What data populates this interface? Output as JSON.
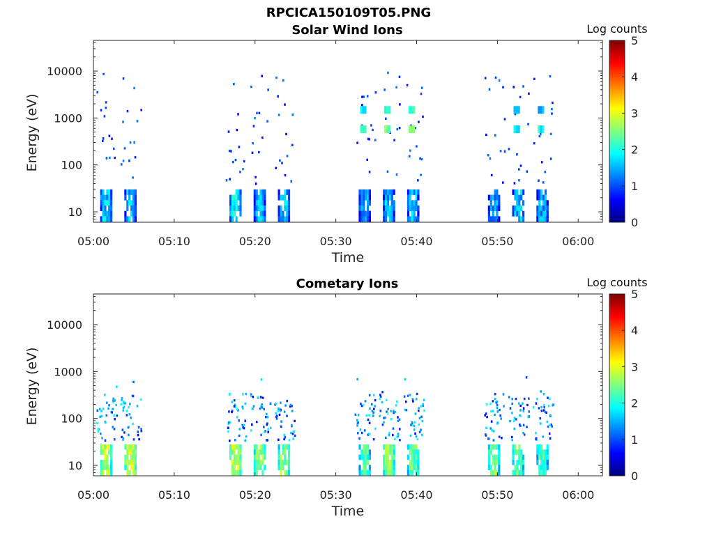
{
  "figure": {
    "title": "RPCICA150109T05.PNG"
  },
  "chart_data": [
    {
      "type": "heatmap",
      "title": "Solar Wind Ions",
      "xlabel": "Time",
      "ylabel": "Energy (eV)",
      "y_scale": "log",
      "ylim": [
        6,
        45000
      ],
      "xlim": [
        "05:00",
        "06:03"
      ],
      "x_ticks": [
        "05:00",
        "05:10",
        "05:20",
        "05:30",
        "05:40",
        "05:50",
        "06:00"
      ],
      "y_ticks": [
        "10",
        "100",
        "1000",
        "10000"
      ],
      "y_tick_values": [
        10,
        100,
        1000,
        10000
      ],
      "colorbar": {
        "label": "Log counts",
        "range": [
          0,
          5
        ],
        "ticks": [
          "0",
          "1",
          "2",
          "3",
          "4",
          "5"
        ]
      },
      "bursts": [
        {
          "start": "05:01",
          "end": "05:02",
          "low_energy_counts": 1.6
        },
        {
          "start": "05:04",
          "end": "05:05",
          "low_energy_counts": 1.5
        },
        {
          "start": "05:17",
          "end": "05:18",
          "low_energy_counts": 1.8
        },
        {
          "start": "05:20",
          "end": "05:21",
          "low_energy_counts": 1.5
        },
        {
          "start": "05:23",
          "end": "05:24",
          "low_energy_counts": 1.5
        },
        {
          "start": "05:33",
          "end": "05:34",
          "low_energy_counts": 1.4,
          "mid_energy_counts": 2.3
        },
        {
          "start": "05:36",
          "end": "05:37",
          "low_energy_counts": 1.5,
          "mid_energy_counts": 2.5
        },
        {
          "start": "05:39",
          "end": "05:40",
          "low_energy_counts": 1.5,
          "mid_energy_counts": 2.4
        },
        {
          "start": "05:49",
          "end": "05:50",
          "low_energy_counts": 1.3
        },
        {
          "start": "05:52",
          "end": "05:53",
          "low_energy_counts": 1.5,
          "mid_energy_counts": 1.9
        },
        {
          "start": "05:55",
          "end": "05:56",
          "low_energy_counts": 1.4,
          "mid_energy_counts": 1.9
        }
      ]
    },
    {
      "type": "heatmap",
      "title": "Cometary Ions",
      "xlabel": "Time",
      "ylabel": "Energy (eV)",
      "y_scale": "log",
      "ylim": [
        6,
        45000
      ],
      "xlim": [
        "05:00",
        "06:03"
      ],
      "x_ticks": [
        "05:00",
        "05:10",
        "05:20",
        "05:30",
        "05:40",
        "05:50",
        "06:00"
      ],
      "y_ticks": [
        "10",
        "100",
        "1000",
        "10000"
      ],
      "y_tick_values": [
        10,
        100,
        1000,
        10000
      ],
      "colorbar": {
        "label": "Log counts",
        "range": [
          0,
          5
        ],
        "ticks": [
          "0",
          "1",
          "2",
          "3",
          "4",
          "5"
        ]
      },
      "bursts": [
        {
          "start": "05:01",
          "end": "05:02",
          "low_energy_counts": 2.7
        },
        {
          "start": "05:04",
          "end": "05:05",
          "low_energy_counts": 2.8
        },
        {
          "start": "05:17",
          "end": "05:18",
          "low_energy_counts": 2.8
        },
        {
          "start": "05:20",
          "end": "05:21",
          "low_energy_counts": 2.6
        },
        {
          "start": "05:23",
          "end": "05:24",
          "low_energy_counts": 2.5
        },
        {
          "start": "05:33",
          "end": "05:34",
          "low_energy_counts": 2.2
        },
        {
          "start": "05:36",
          "end": "05:37",
          "low_energy_counts": 2.6
        },
        {
          "start": "05:39",
          "end": "05:40",
          "low_energy_counts": 2.3
        },
        {
          "start": "05:49",
          "end": "05:50",
          "low_energy_counts": 2.4
        },
        {
          "start": "05:52",
          "end": "05:53",
          "low_energy_counts": 2.3
        },
        {
          "start": "05:55",
          "end": "05:56",
          "low_energy_counts": 2.2
        }
      ]
    }
  ]
}
